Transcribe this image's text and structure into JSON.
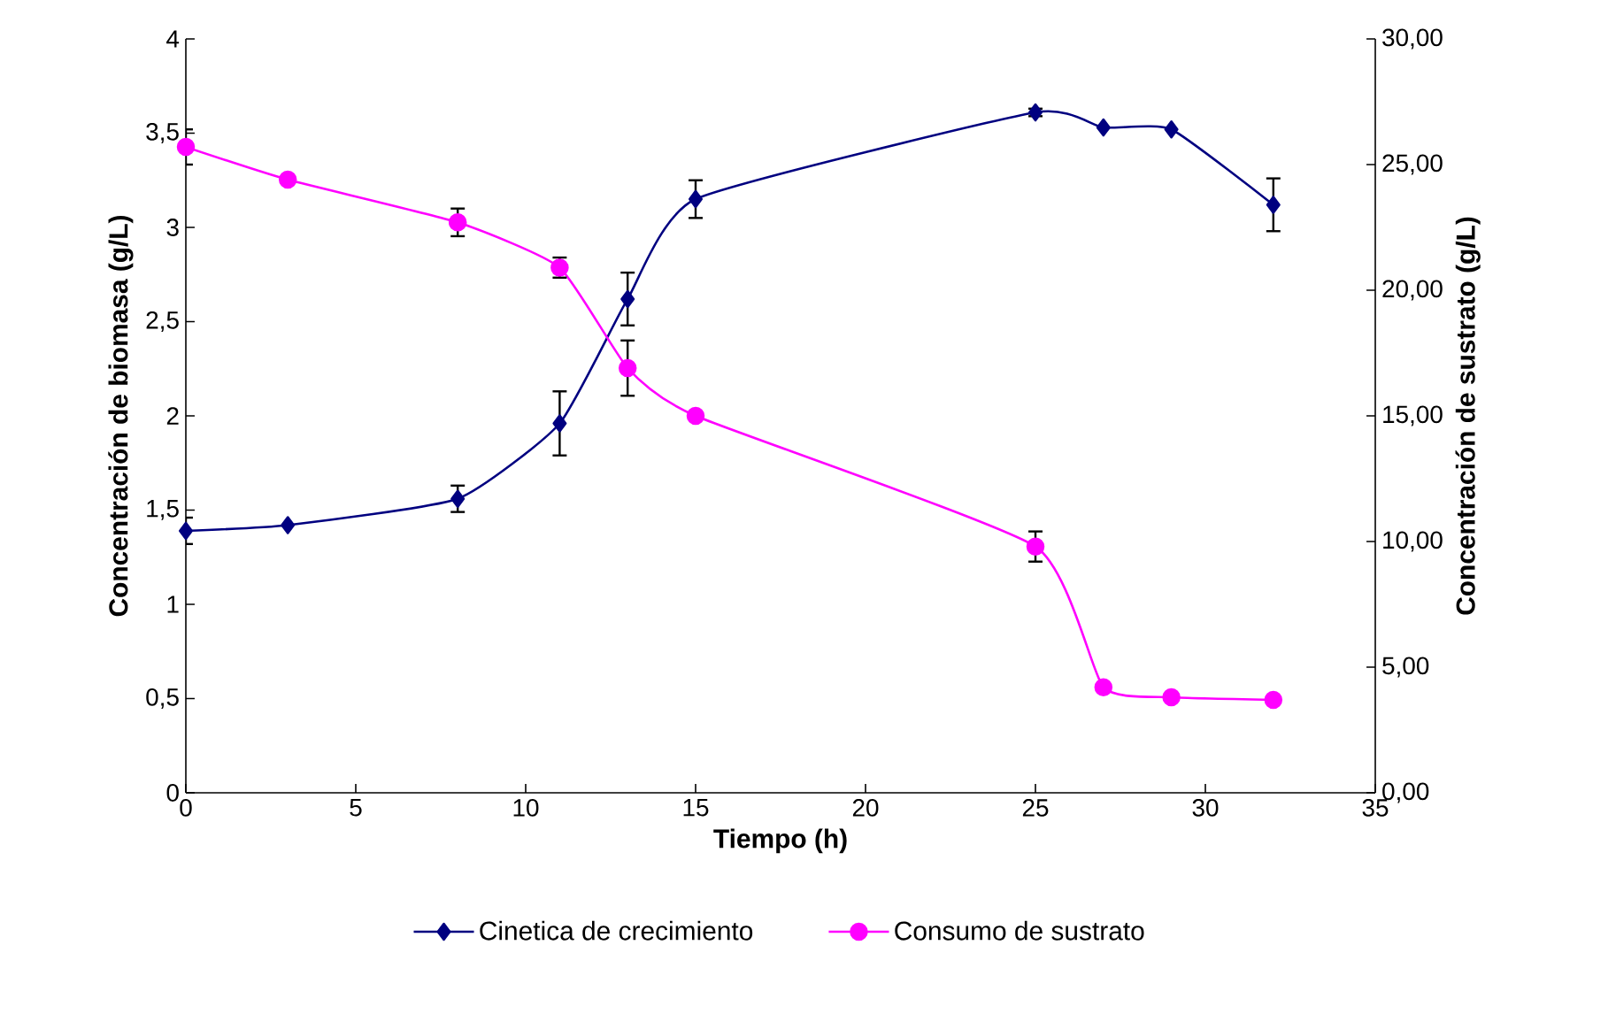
{
  "chart_data": {
    "type": "line",
    "xlabel": "Tiempo (h)",
    "ylabel": "Concentración de biomasa (g/L)",
    "y2label": "Concentración de sustrato (g/L)",
    "xlim": [
      0,
      35
    ],
    "xticks": [
      0,
      5,
      10,
      15,
      20,
      25,
      30,
      35
    ],
    "ylim": [
      0,
      4
    ],
    "yticks": [
      0,
      {
        "value": 0.5,
        "label": "0,5"
      },
      1,
      {
        "value": 1.5,
        "label": "1,5"
      },
      2,
      {
        "value": 2.5,
        "label": "2,5"
      },
      3,
      {
        "value": 3.5,
        "label": "3,5"
      },
      4
    ],
    "y2lim": [
      0,
      30
    ],
    "y2ticks": [
      {
        "value": 0,
        "label": "0,00"
      },
      {
        "value": 5,
        "label": "5,00"
      },
      {
        "value": 10,
        "label": "10,00"
      },
      {
        "value": 15,
        "label": "15,00"
      },
      {
        "value": 20,
        "label": "20,00"
      },
      {
        "value": 25,
        "label": "25,00"
      },
      {
        "value": 30,
        "label": "30,00"
      }
    ],
    "x": [
      0,
      3,
      8,
      11,
      13,
      15,
      25,
      27,
      29,
      32
    ],
    "series": [
      {
        "name": "Cinetica de crecimiento",
        "color": "#000080",
        "marker": "diamond",
        "values": [
          1.39,
          1.42,
          1.56,
          1.96,
          2.62,
          3.15,
          3.61,
          3.53,
          3.52,
          3.12
        ],
        "errors": [
          0.07,
          null,
          0.07,
          0.17,
          0.14,
          0.1,
          0.02,
          null,
          null,
          0.14
        ]
      },
      {
        "name": "Consumo de sustrato",
        "color": "#ff00ff",
        "marker": "circle",
        "axis": "y2",
        "values": [
          25.7,
          24.4,
          22.7,
          20.9,
          16.9,
          15.0,
          9.8,
          4.2,
          3.8,
          3.7
        ],
        "errors": [
          0.7,
          null,
          0.55,
          0.4,
          1.1,
          null,
          0.6,
          null,
          null,
          null
        ]
      }
    ],
    "legend": "bottom",
    "grid": false
  }
}
